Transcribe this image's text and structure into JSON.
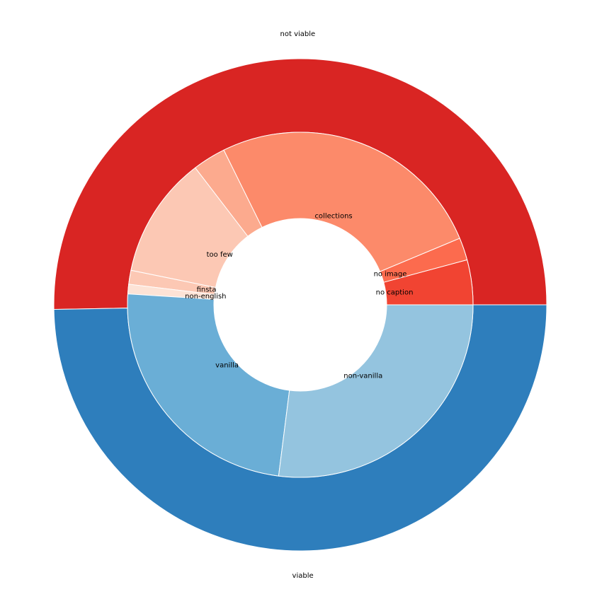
{
  "chart_data": {
    "type": "pie",
    "subtype": "nested-donut",
    "start_angle_deg": 0,
    "direction": "counterclockwise",
    "rings": [
      {
        "name": "",
        "slices": [
          {
            "label": "not viable",
            "value": 50.3,
            "color": "#d92523"
          },
          {
            "label": "viable",
            "value": 49.7,
            "color": "#2e7ebc"
          }
        ]
      },
      {
        "name": "",
        "slices": [
          {
            "label": "no caption",
            "value": 4.2,
            "color": "#f14432"
          },
          {
            "label": "no image",
            "value": 2.1,
            "color": "#fc6b4e"
          },
          {
            "label": "collections",
            "value": 26.0,
            "color": "#fc8a6a"
          },
          {
            "label": "",
            "value": 3.1,
            "color": "#fcaa8e"
          },
          {
            "label": "too few",
            "value": 11.4,
            "color": "#fcc8b4"
          },
          {
            "label": "finsta",
            "value": 1.3,
            "color": "#fcc8b4"
          },
          {
            "label": "non-english",
            "value": 0.9,
            "color": "#fde3d6"
          },
          {
            "label": "vanilla",
            "value": 24.0,
            "color": "#6aaed6"
          },
          {
            "label": "non-vanilla",
            "value": 27.0,
            "color": "#94c4df"
          }
        ]
      }
    ]
  }
}
